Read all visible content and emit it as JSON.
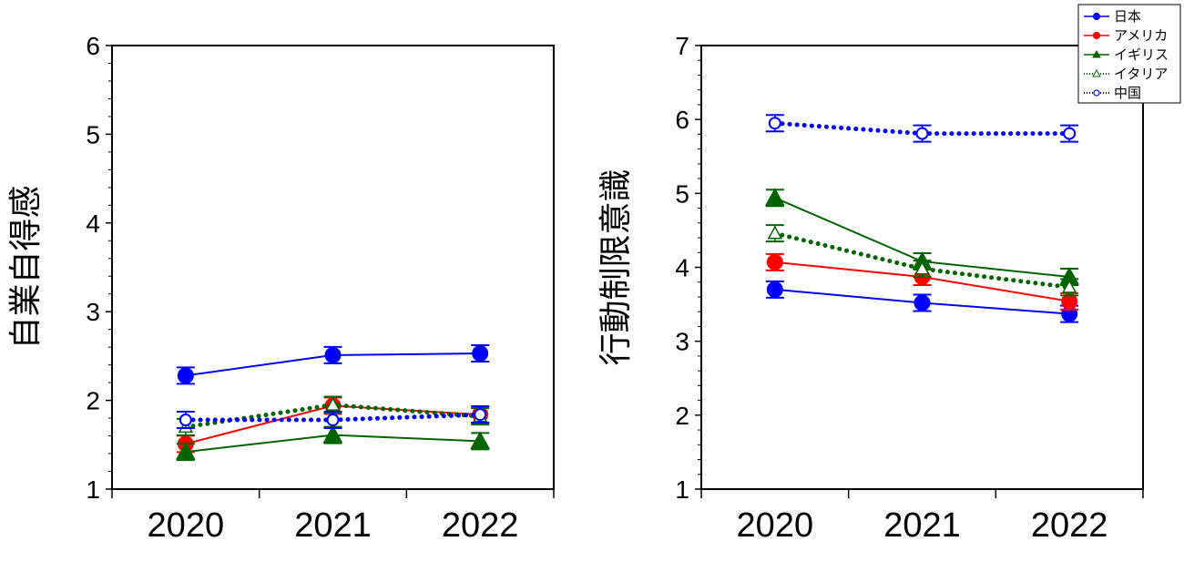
{
  "legend": {
    "placement": "top-right",
    "entries": [
      "日本",
      "アメリカ",
      "イギリス",
      "イタリア",
      "中国"
    ]
  },
  "series_styles": [
    {
      "color": "#0000ff",
      "marker": "circle",
      "fill": true,
      "dash": false
    },
    {
      "color": "#ff0000",
      "marker": "circle",
      "fill": true,
      "dash": false
    },
    {
      "color": "#006400",
      "marker": "triangle",
      "fill": true,
      "dash": false
    },
    {
      "color": "#006400",
      "marker": "triangle",
      "fill": false,
      "dash": true
    },
    {
      "color": "#0000ff",
      "marker": "circle",
      "fill": false,
      "dash": true
    }
  ],
  "chart_data": [
    {
      "type": "line",
      "title": "",
      "xlabel": "",
      "ylabel": "自業自得感",
      "categories": [
        "2020",
        "2021",
        "2022"
      ],
      "ylim": [
        1,
        6
      ],
      "yticks": [
        "1",
        "2",
        "3",
        "4",
        "5",
        "6"
      ],
      "grid": false,
      "series": [
        {
          "name": "日本",
          "values": [
            2.28,
            2.51,
            2.53
          ]
        },
        {
          "name": "アメリカ",
          "values": [
            1.51,
            1.94,
            1.84
          ]
        },
        {
          "name": "イギリス",
          "values": [
            1.42,
            1.61,
            1.54
          ]
        },
        {
          "name": "イタリア",
          "values": [
            1.7,
            1.95,
            1.82
          ]
        },
        {
          "name": "中国",
          "values": [
            1.78,
            1.78,
            1.84
          ]
        }
      ]
    },
    {
      "type": "line",
      "title": "",
      "xlabel": "",
      "ylabel": "行動制限意識",
      "categories": [
        "2020",
        "2021",
        "2022"
      ],
      "ylim": [
        1,
        7
      ],
      "yticks": [
        "1",
        "2",
        "3",
        "4",
        "5",
        "6",
        "7"
      ],
      "grid": false,
      "series": [
        {
          "name": "日本",
          "values": [
            3.7,
            3.52,
            3.37
          ]
        },
        {
          "name": "アメリカ",
          "values": [
            4.07,
            3.87,
            3.54
          ]
        },
        {
          "name": "イギリス",
          "values": [
            4.94,
            4.08,
            3.87
          ]
        },
        {
          "name": "イタリア",
          "values": [
            4.46,
            3.98,
            3.73
          ]
        },
        {
          "name": "中国",
          "values": [
            5.95,
            5.81,
            5.81
          ]
        }
      ]
    }
  ]
}
